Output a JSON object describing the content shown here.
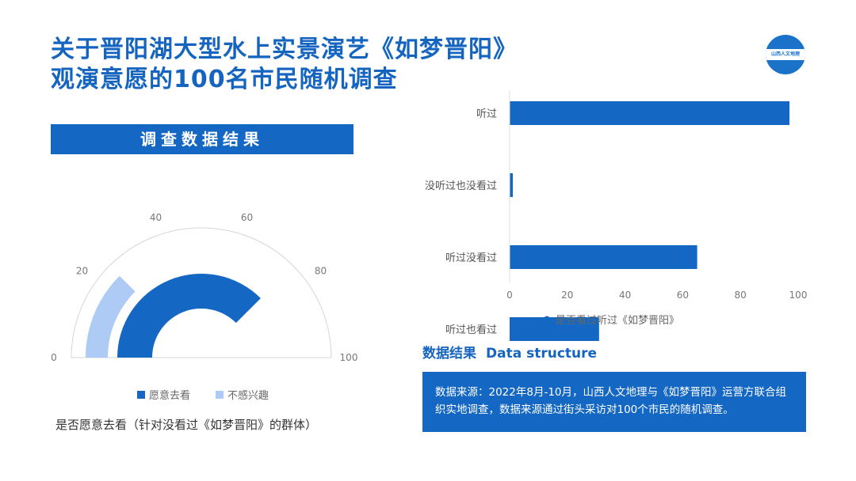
{
  "title": {
    "line1": "关于晋阳湖大型水上实景演艺《如梦晋阳》",
    "line2": "观演意愿的100名市民随机调查"
  },
  "logo": {
    "text": "山西人文地理"
  },
  "section": {
    "label": "调查数据结果"
  },
  "colors": {
    "primary": "#1467c3",
    "light": "#aecbf5"
  },
  "chart_data": [
    {
      "type": "gauge",
      "caption": "是否愿意去看（针对没看过《如梦晋阳》的群体）",
      "range": [
        0,
        100
      ],
      "ticks": [
        0,
        20,
        40,
        60,
        80,
        100
      ],
      "series": [
        {
          "name": "愿意去看",
          "value": 75,
          "color": "#1467c3"
        },
        {
          "name": "不感兴趣",
          "value": 25,
          "color": "#aecbf5"
        }
      ]
    },
    {
      "type": "bar",
      "orientation": "horizontal",
      "categories": [
        "听过",
        "没听过也没看过",
        "听过没看过",
        "听过也看过"
      ],
      "values": [
        97,
        1,
        65,
        31
      ],
      "series_name": "是否看过听过《如梦晋阳》",
      "xlim": [
        0,
        100
      ],
      "xticks": [
        0,
        20,
        40,
        60,
        80,
        100
      ],
      "color": "#1467c3"
    }
  ],
  "data_structure": {
    "heading_cn": "数据结果",
    "heading_en": "Data structure",
    "source_text": "数据来源：2022年8月-10月，山西人文地理与《如梦晋阳》运营方联合组织实地调查，数据来源通过街头采访对100个市民的随机调查。"
  }
}
